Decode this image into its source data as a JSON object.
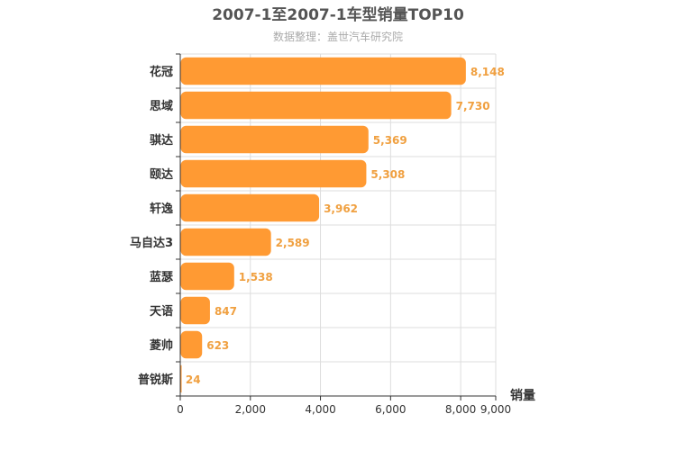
{
  "chart_data": {
    "type": "bar",
    "orientation": "horizontal",
    "title": "2007-1至2007-1车型销量TOP10",
    "subtitle": "数据整理：盖世汽车研究院",
    "xlabel": "销量",
    "ylabel": "",
    "categories": [
      "花冠",
      "思域",
      "骐达",
      "颐达",
      "轩逸",
      "马自达3",
      "蓝瑟",
      "天语",
      "菱帅",
      "普锐斯"
    ],
    "values": [
      8148,
      7730,
      5369,
      5308,
      3962,
      2589,
      1538,
      847,
      623,
      24
    ],
    "value_labels": [
      "8,148",
      "7,730",
      "5,369",
      "5,308",
      "3,962",
      "2,589",
      "1,538",
      "847",
      "623",
      "24"
    ],
    "xlim": [
      0,
      9000
    ],
    "ticks": [
      0,
      2000,
      4000,
      6000,
      8000,
      9000
    ],
    "tick_labels": [
      "0",
      "2,000",
      "4,000",
      "6,000",
      "8,000",
      "9,000"
    ],
    "grid": true,
    "colors": {
      "bar": "#ff9a33",
      "value_label": "#f0a040",
      "grid": "#dddddd",
      "axis": "#333333",
      "title": "#555555",
      "subtitle": "#aaaaaa"
    }
  }
}
